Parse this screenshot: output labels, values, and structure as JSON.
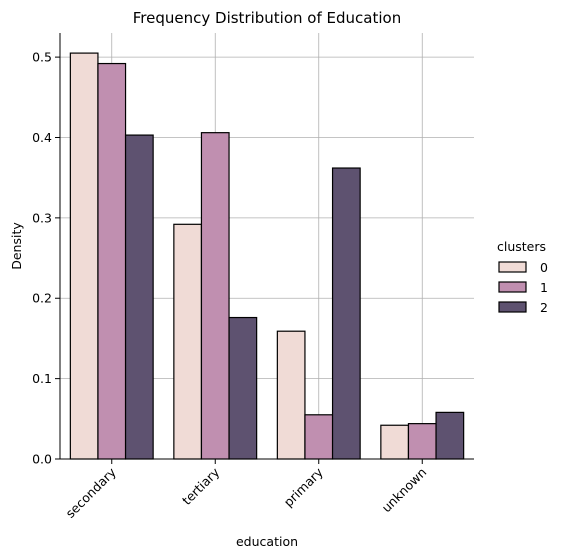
{
  "chart_data": {
    "type": "bar",
    "title": "Frequency Distribution of Education",
    "xlabel": "education",
    "ylabel": "Density",
    "categories": [
      "secondary",
      "tertiary",
      "primary",
      "unknown"
    ],
    "series": [
      {
        "name": "0",
        "values": [
          0.505,
          0.292,
          0.159,
          0.042
        ],
        "color": "#f0dbd6"
      },
      {
        "name": "1",
        "values": [
          0.492,
          0.406,
          0.055,
          0.044
        ],
        "color": "#c08fb0"
      },
      {
        "name": "2",
        "values": [
          0.403,
          0.176,
          0.362,
          0.058
        ],
        "color": "#5e5270"
      }
    ],
    "ylim": [
      0,
      0.53
    ],
    "yticks": [
      "0.0",
      "0.1",
      "0.2",
      "0.3",
      "0.4",
      "0.5"
    ],
    "ytick_values": [
      0.0,
      0.1,
      0.2,
      0.3,
      0.4,
      0.5
    ],
    "grid": true,
    "legend": {
      "title": "clusters",
      "placement": "right"
    }
  }
}
